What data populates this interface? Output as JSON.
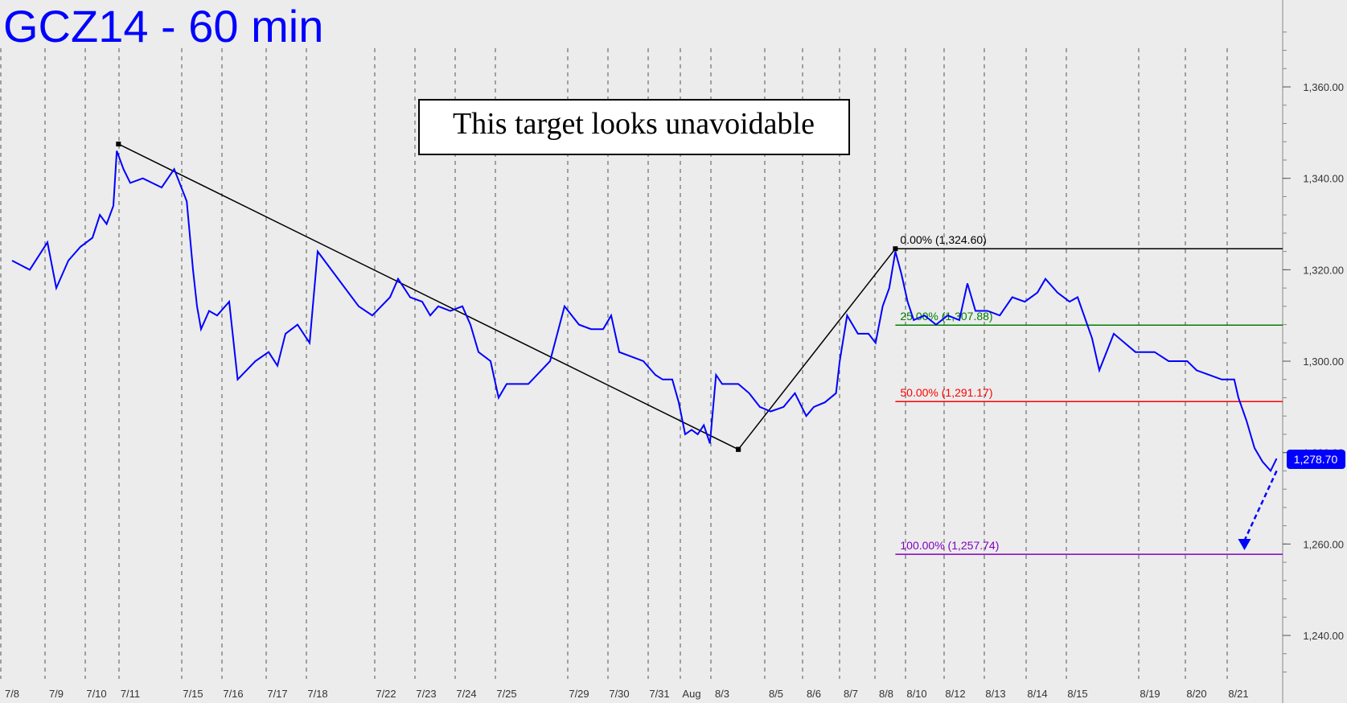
{
  "chart_data": {
    "type": "line",
    "title": "GCZ14 - 60 min",
    "annotation": "This target looks unavoidable",
    "colors": {
      "price": "#0000ff",
      "background": "#ececec",
      "axis_text": "#333333"
    },
    "ylim": [
      1230,
      1372
    ],
    "y_ticks": [
      {
        "value": 1240,
        "label": "1,240.00"
      },
      {
        "value": 1260,
        "label": "1,260.00"
      },
      {
        "value": 1280,
        "label": "1,280.00"
      },
      {
        "value": 1300,
        "label": "1,300.00"
      },
      {
        "value": 1320,
        "label": "1,320.00"
      },
      {
        "value": 1340,
        "label": "1,340.00"
      },
      {
        "value": 1360,
        "label": "1,360.00"
      }
    ],
    "x_ticks": [
      "7/8",
      "7/9",
      "7/10",
      "7/11",
      "7/15",
      "7/16",
      "7/17",
      "7/18",
      "7/22",
      "7/23",
      "7/24",
      "7/25",
      "7/29",
      "7/30",
      "7/31",
      "Aug",
      "8/3",
      "8/5",
      "8/6",
      "8/7",
      "8/8",
      "8/10",
      "8/12",
      "8/13",
      "8/14",
      "8/15",
      "8/19",
      "8/20",
      "8/21"
    ],
    "last_price": {
      "value": 1278.7,
      "label": "1,278.70"
    },
    "series": [
      {
        "values": [
          [
            0,
            1322
          ],
          [
            0.4,
            1320
          ],
          [
            0.8,
            1326
          ],
          [
            1.0,
            1316
          ],
          [
            1.3,
            1322
          ],
          [
            1.6,
            1325
          ],
          [
            1.9,
            1327
          ],
          [
            2.1,
            1332
          ],
          [
            2.3,
            1330
          ],
          [
            2.5,
            1334
          ],
          [
            2.6,
            1346
          ],
          [
            2.8,
            1342
          ],
          [
            3.0,
            1339
          ],
          [
            3.2,
            1340
          ],
          [
            3.5,
            1338
          ],
          [
            3.7,
            1342
          ],
          [
            3.9,
            1335
          ],
          [
            4.0,
            1320
          ],
          [
            4.1,
            1312
          ],
          [
            4.2,
            1307
          ],
          [
            4.4,
            1311
          ],
          [
            4.6,
            1310
          ],
          [
            4.9,
            1313
          ],
          [
            5.1,
            1296
          ],
          [
            5.3,
            1298
          ],
          [
            5.5,
            1300
          ],
          [
            5.8,
            1302
          ],
          [
            6.0,
            1299
          ],
          [
            6.2,
            1306
          ],
          [
            6.5,
            1308
          ],
          [
            6.8,
            1304
          ],
          [
            7.0,
            1324
          ],
          [
            7.2,
            1320
          ],
          [
            7.4,
            1316
          ],
          [
            7.6,
            1312
          ],
          [
            7.8,
            1310
          ],
          [
            8.1,
            1314
          ],
          [
            8.3,
            1318
          ],
          [
            8.6,
            1314
          ],
          [
            8.9,
            1313
          ],
          [
            9.1,
            1310
          ],
          [
            9.3,
            1312
          ],
          [
            9.6,
            1311
          ],
          [
            9.9,
            1312
          ],
          [
            10.1,
            1308
          ],
          [
            10.3,
            1302
          ],
          [
            10.6,
            1300
          ],
          [
            10.8,
            1292
          ],
          [
            11.0,
            1295
          ],
          [
            11.3,
            1295
          ],
          [
            11.6,
            1300
          ],
          [
            11.8,
            1312
          ],
          [
            12.0,
            1308
          ],
          [
            12.3,
            1307
          ],
          [
            12.6,
            1307
          ],
          [
            12.8,
            1310
          ],
          [
            13.0,
            1302
          ],
          [
            13.3,
            1301
          ],
          [
            13.6,
            1300
          ],
          [
            13.9,
            1297
          ],
          [
            14.1,
            1296
          ],
          [
            14.4,
            1296
          ],
          [
            14.6,
            1291
          ],
          [
            14.8,
            1284
          ],
          [
            15.0,
            1285
          ],
          [
            15.2,
            1284
          ],
          [
            15.4,
            1286
          ],
          [
            15.6,
            1282
          ],
          [
            15.8,
            1297
          ],
          [
            16.0,
            1295
          ],
          [
            16.3,
            1295
          ],
          [
            16.5,
            1293
          ],
          [
            16.7,
            1290
          ],
          [
            16.9,
            1289
          ],
          [
            17.2,
            1290
          ],
          [
            17.5,
            1293
          ],
          [
            17.8,
            1288
          ],
          [
            18.0,
            1290
          ],
          [
            18.3,
            1291
          ],
          [
            18.6,
            1293
          ],
          [
            18.7,
            1300
          ],
          [
            18.9,
            1310
          ],
          [
            19.2,
            1306
          ],
          [
            19.5,
            1306
          ],
          [
            19.7,
            1304
          ],
          [
            19.9,
            1312
          ],
          [
            20.1,
            1316
          ],
          [
            20.3,
            1324
          ],
          [
            20.5,
            1319
          ],
          [
            20.7,
            1313
          ],
          [
            20.9,
            1309
          ],
          [
            21.2,
            1310
          ],
          [
            21.5,
            1308
          ],
          [
            21.8,
            1310
          ],
          [
            22.1,
            1309
          ],
          [
            22.3,
            1317
          ],
          [
            22.5,
            1311
          ],
          [
            22.8,
            1311
          ],
          [
            23.1,
            1310
          ],
          [
            23.4,
            1314
          ],
          [
            23.7,
            1313
          ],
          [
            24.0,
            1315
          ],
          [
            24.2,
            1318
          ],
          [
            24.5,
            1315
          ],
          [
            24.8,
            1313
          ],
          [
            25.0,
            1314
          ],
          [
            25.2,
            1305
          ],
          [
            25.3,
            1298
          ],
          [
            25.5,
            1306
          ],
          [
            25.8,
            1302
          ],
          [
            26.1,
            1302
          ],
          [
            26.4,
            1300
          ],
          [
            26.8,
            1300
          ],
          [
            27.0,
            1298
          ],
          [
            27.3,
            1297
          ],
          [
            27.6,
            1296
          ],
          [
            27.9,
            1296
          ],
          [
            28.0,
            1292
          ],
          [
            28.2,
            1287
          ],
          [
            28.4,
            1281
          ],
          [
            28.6,
            1278
          ],
          [
            28.8,
            1276
          ],
          [
            28.95,
            1278.7
          ]
        ]
      }
    ],
    "trendlines": [
      {
        "from": [
          2.65,
          1347.5
        ],
        "to": [
          16.3,
          1280.7
        ]
      },
      {
        "from": [
          16.3,
          1280.7
        ],
        "to": [
          20.3,
          1324.6
        ]
      }
    ],
    "projection": {
      "from": [
        28.95,
        1276
      ],
      "to": [
        29.15,
        1259
      ]
    },
    "fib_levels": [
      {
        "label": "0.00% (1,324.60)",
        "value": 1324.6,
        "color": "#000000"
      },
      {
        "label": "25.00% (1,307.88)",
        "value": 1307.88,
        "color": "#008000"
      },
      {
        "label": "50.00% (1,291.17)",
        "value": 1291.17,
        "color": "#ff0000"
      },
      {
        "label": "100.00% (1,257.74)",
        "value": 1257.74,
        "color": "#8000c0"
      }
    ]
  }
}
